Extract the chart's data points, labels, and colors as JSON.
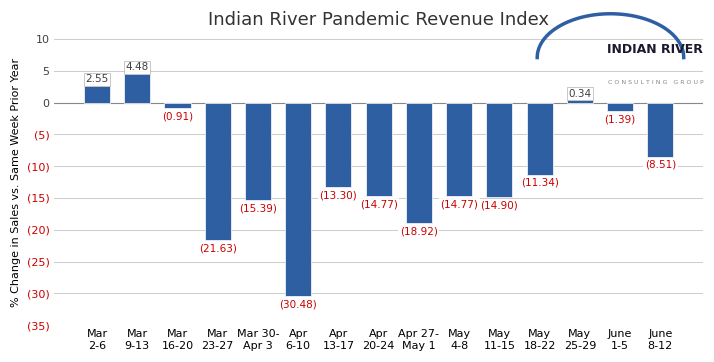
{
  "title": "Indian River Pandemic Revenue Index",
  "ylabel": "% Change in Sales vs. Same Week Prior Year",
  "categories": [
    "Mar\n2-6",
    "Mar\n9-13",
    "Mar\n16-20",
    "Mar\n23-27",
    "Mar 30-\nApr 3",
    "Apr\n6-10",
    "Apr\n13-17",
    "Apr\n20-24",
    "Apr 27-\nMay 1",
    "May\n4-8",
    "May\n11-15",
    "May\n18-22",
    "May\n25-29",
    "June\n1-5",
    "June\n8-12"
  ],
  "values": [
    2.55,
    4.48,
    -0.91,
    -21.63,
    -15.39,
    -30.48,
    -13.3,
    -14.77,
    -18.92,
    -14.77,
    -14.9,
    -11.34,
    0.34,
    -1.39,
    -8.51
  ],
  "bar_color": "#2E5FA3",
  "label_color_positive": "#404040",
  "label_color_negative": "#CC0000",
  "ylim": [
    -35,
    10
  ],
  "yticks": [
    10,
    5,
    0,
    -5,
    -10,
    -15,
    -20,
    -25,
    -30,
    -35
  ],
  "background_color": "#FFFFFF",
  "grid_color": "#CCCCCC",
  "title_fontsize": 13,
  "label_fontsize": 7.5,
  "tick_fontsize": 8
}
